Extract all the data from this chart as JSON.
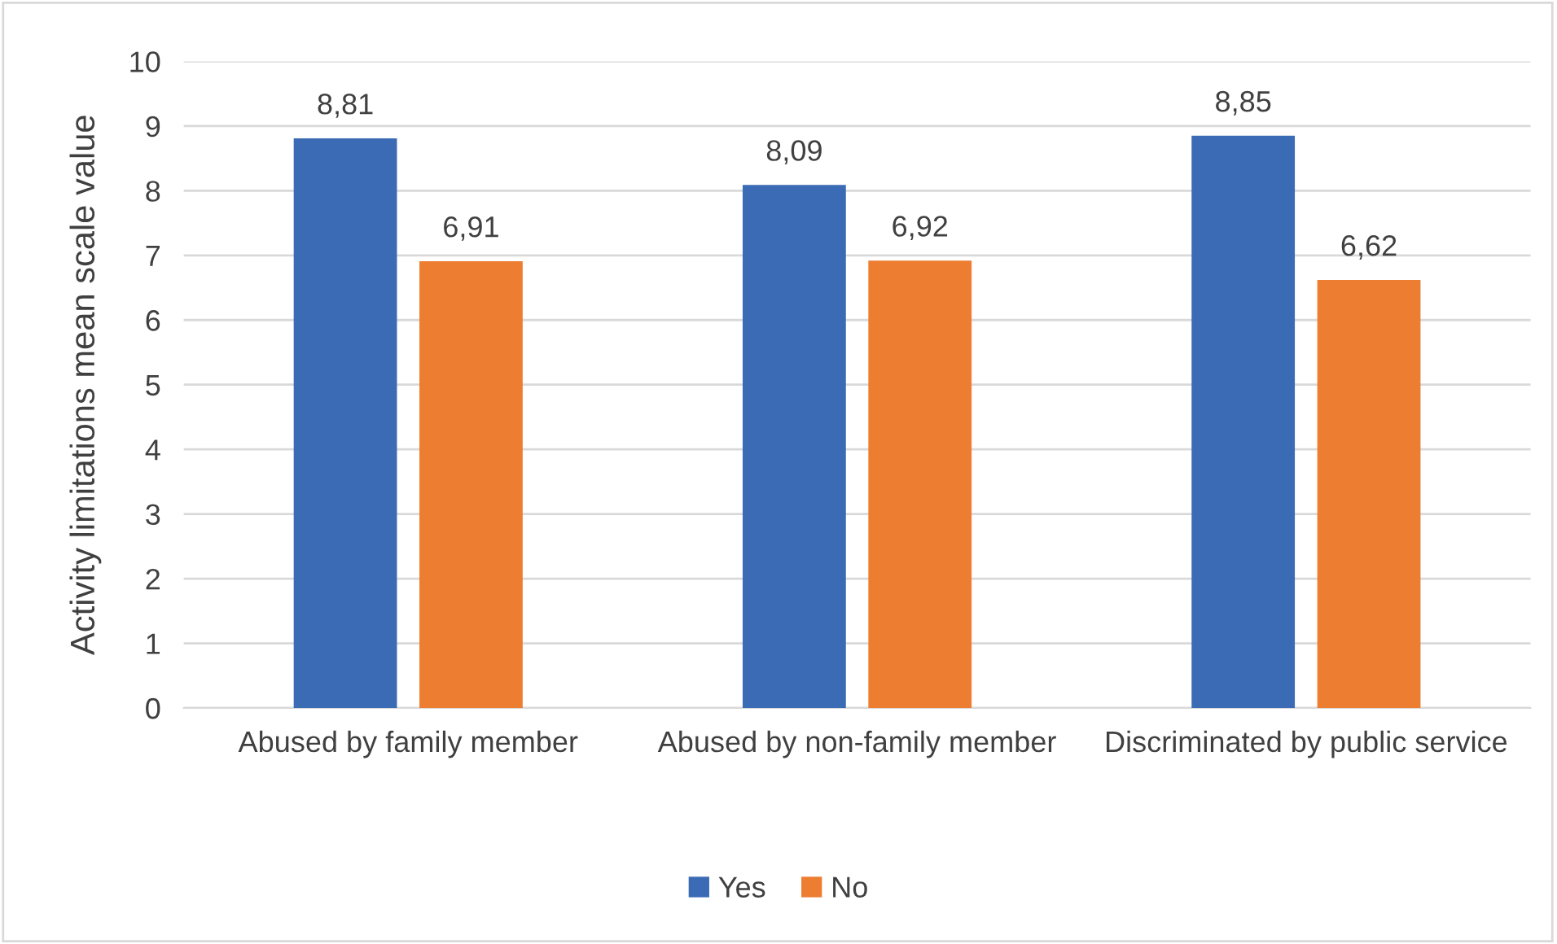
{
  "chart_data": {
    "type": "bar",
    "ylabel": "Activity limitations mean scale value",
    "categories": [
      "Abused by family member",
      "Abused by non-family member",
      "Discriminated by public service"
    ],
    "series": [
      {
        "name": "Yes",
        "color": "#3b6bb5",
        "values": [
          8.81,
          8.09,
          8.85
        ],
        "value_labels": [
          "8,81",
          "8,09",
          "8,85"
        ]
      },
      {
        "name": "No",
        "color": "#ed7d31",
        "values": [
          6.91,
          6.92,
          6.62
        ],
        "value_labels": [
          "6,91",
          "6,92",
          "6,62"
        ]
      }
    ],
    "ylim": [
      0,
      10
    ],
    "yticks": [
      0,
      1,
      2,
      3,
      4,
      5,
      6,
      7,
      8,
      9,
      10
    ],
    "grid": "y",
    "legend": "bottom"
  }
}
